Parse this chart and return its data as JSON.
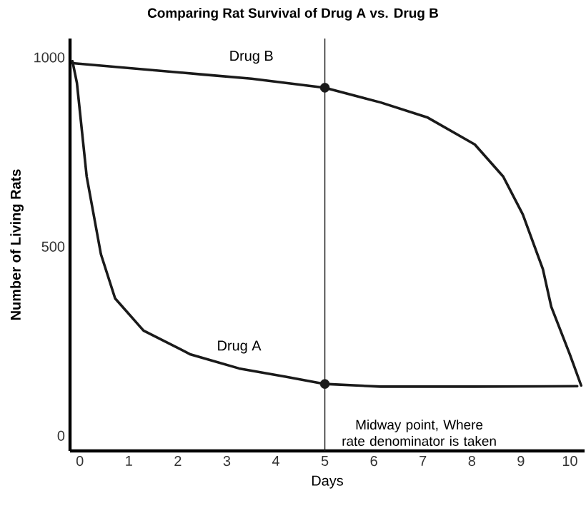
{
  "chart_data": {
    "type": "line",
    "title": "Comparing Rat Survival of Drug A vs. Drug B",
    "xlabel": "Days",
    "ylabel": "Number of Living Rats",
    "xlim": [
      -0.2,
      10.3
    ],
    "ylim": [
      -40,
      1050
    ],
    "xticks": [
      0,
      1,
      2,
      3,
      4,
      5,
      6,
      7,
      8,
      9,
      10
    ],
    "yticks": [
      0,
      500,
      1000
    ],
    "series": [
      {
        "name": "Drug A",
        "color": "#1a1a1a",
        "x": [
          -0.15,
          -0.06,
          0.14,
          0.43,
          0.72,
          1.3,
          2.26,
          3.25,
          4.2,
          5,
          6.14,
          8.06,
          10.15
        ],
        "values": [
          990,
          933,
          685,
          480,
          363,
          278,
          215,
          178,
          156,
          137,
          130,
          130,
          131
        ]
      },
      {
        "name": "Drug B",
        "color": "#1a1a1a",
        "x": [
          -0.15,
          2.5,
          3.5,
          5,
          6.14,
          7.1,
          8.06,
          8.64,
          9.04,
          9.45,
          9.62,
          10,
          10.23
        ],
        "values": [
          985,
          955,
          944,
          920,
          881,
          841,
          770,
          685,
          585,
          440,
          341,
          215,
          133
        ]
      },
      {
        "type": "scatter",
        "marker": "circle",
        "color": "#1a1a1a",
        "x": [
          5,
          5
        ],
        "values": [
          137,
          920
        ]
      }
    ],
    "ref_lines": [
      {
        "axis": "x",
        "value": 5,
        "label": "Midway point, Where rate denominator is taken",
        "color": "#1a1a1a"
      }
    ],
    "grid": false
  }
}
